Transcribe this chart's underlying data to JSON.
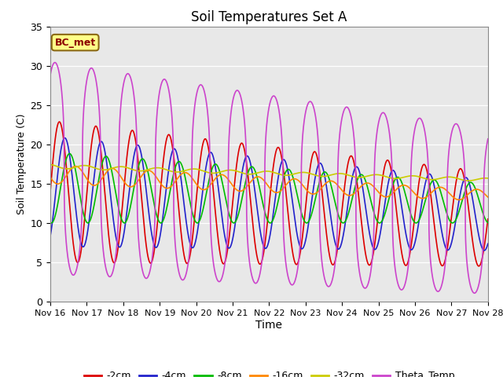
{
  "title": "Soil Temperatures Set A",
  "xlabel": "Time",
  "ylabel": "Soil Temperature (C)",
  "ylim": [
    0,
    35
  ],
  "yticks": [
    0,
    5,
    10,
    15,
    20,
    25,
    30,
    35
  ],
  "xtick_labels": [
    "Nov 16",
    "Nov 17",
    "Nov 18",
    "Nov 19",
    "Nov 20",
    "Nov 21",
    "Nov 22",
    "Nov 23",
    "Nov 24",
    "Nov 25",
    "Nov 26",
    "Nov 27",
    "Nov 28"
  ],
  "annotation_text": "BC_met",
  "bg_color": "#e8e8e8",
  "legend_labels": [
    "-2cm",
    "-4cm",
    "-8cm",
    "-16cm",
    "-32cm",
    "Theta_Temp"
  ],
  "legend_colors": [
    "#dd0000",
    "#2222cc",
    "#00bb00",
    "#ff8800",
    "#cccc00",
    "#cc44cc"
  ]
}
